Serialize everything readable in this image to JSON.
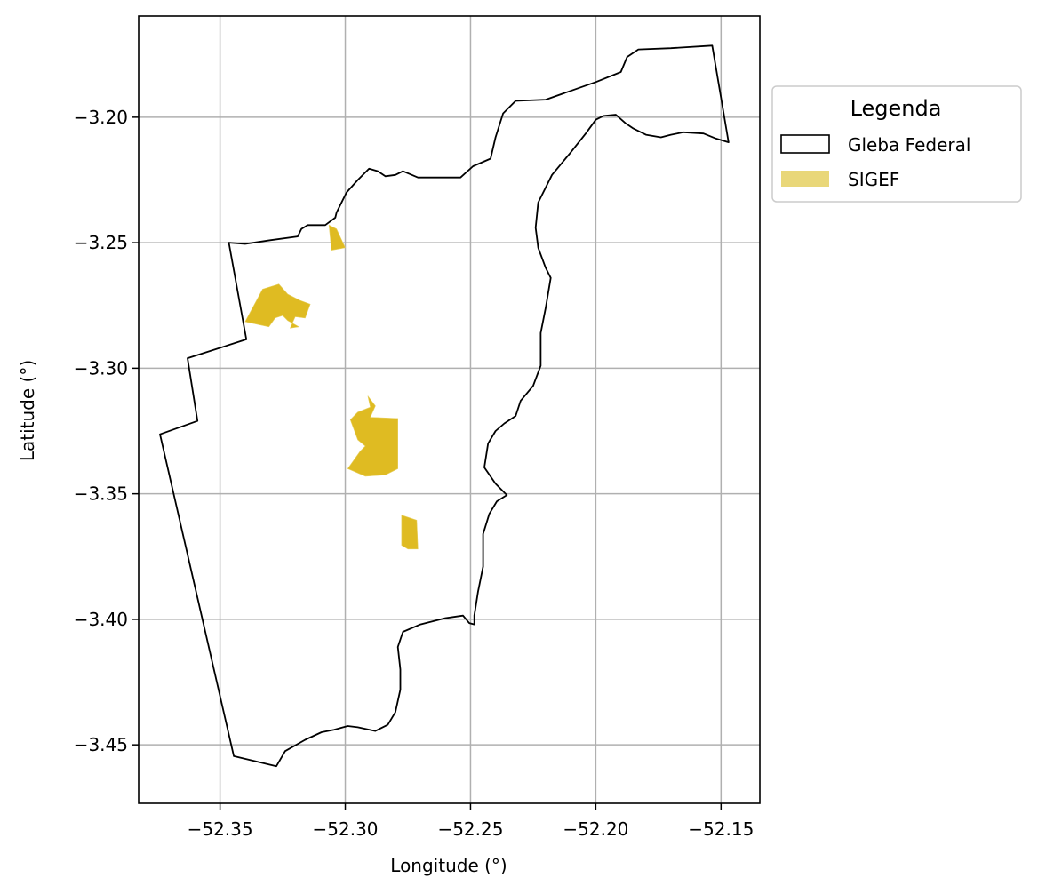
{
  "chart_data": {
    "type": "map",
    "xlabel": "Longitude (°)",
    "ylabel": "Latitude (°)",
    "xlim": [
      -52.3825,
      -52.1345
    ],
    "ylim": [
      -3.4733,
      -3.1597
    ],
    "xticks": [
      -52.35,
      -52.3,
      -52.25,
      -52.2,
      -52.15
    ],
    "yticks": [
      -3.2,
      -3.25,
      -3.3,
      -3.35,
      -3.4,
      -3.45
    ],
    "xtick_labels": [
      "−52.35",
      "−52.30",
      "−52.25",
      "−52.20",
      "−52.15"
    ],
    "ytick_labels": [
      "−3.20",
      "−3.25",
      "−3.30",
      "−3.35",
      "−3.40",
      "−3.45"
    ],
    "grid": true,
    "legend": {
      "title": "Legenda",
      "placement": "outside-upper-right",
      "entries": [
        {
          "label": "Gleba Federal",
          "style": "outline",
          "edge_color": "#000000",
          "face_color": "#ffffff"
        },
        {
          "label": "SIGEF",
          "style": "fill",
          "face_color": "#e9d779"
        }
      ]
    },
    "colors": {
      "gleba_edge": "#000000",
      "sigef_fill": "#dfbb22",
      "sigef_legend": "#e9d779",
      "grid": "#b0b0b0",
      "frame": "#000000"
    },
    "series": [
      {
        "name": "Gleba Federal",
        "geometry": "polygon",
        "coordinates": [
          [
            -52.3465,
            -3.25
          ],
          [
            -52.34,
            -3.2505
          ],
          [
            -52.33,
            -3.249
          ],
          [
            -52.319,
            -3.2475
          ],
          [
            -52.3175,
            -3.2445
          ],
          [
            -52.315,
            -3.243
          ],
          [
            -52.308,
            -3.243
          ],
          [
            -52.304,
            -3.24
          ],
          [
            -52.3035,
            -3.238
          ],
          [
            -52.2995,
            -3.23
          ],
          [
            -52.295,
            -3.225
          ],
          [
            -52.2905,
            -3.2205
          ],
          [
            -52.287,
            -3.2215
          ],
          [
            -52.284,
            -3.2235
          ],
          [
            -52.28,
            -3.223
          ],
          [
            -52.277,
            -3.2215
          ],
          [
            -52.271,
            -3.224
          ],
          [
            -52.26,
            -3.224
          ],
          [
            -52.254,
            -3.224
          ],
          [
            -52.249,
            -3.2195
          ],
          [
            -52.242,
            -3.2165
          ],
          [
            -52.24,
            -3.208
          ],
          [
            -52.237,
            -3.1985
          ],
          [
            -52.232,
            -3.1935
          ],
          [
            -52.22,
            -3.193
          ],
          [
            -52.21,
            -3.1895
          ],
          [
            -52.2,
            -3.186
          ],
          [
            -52.19,
            -3.182
          ],
          [
            -52.1875,
            -3.176
          ],
          [
            -52.183,
            -3.173
          ],
          [
            -52.17,
            -3.1725
          ],
          [
            -52.1535,
            -3.1715
          ],
          [
            -52.147,
            -3.21
          ],
          [
            -52.152,
            -3.2085
          ],
          [
            -52.157,
            -3.2065
          ],
          [
            -52.165,
            -3.206
          ],
          [
            -52.17,
            -3.207
          ],
          [
            -52.174,
            -3.208
          ],
          [
            -52.18,
            -3.207
          ],
          [
            -52.185,
            -3.2045
          ],
          [
            -52.188,
            -3.2025
          ],
          [
            -52.192,
            -3.199
          ],
          [
            -52.197,
            -3.1995
          ],
          [
            -52.2,
            -3.201
          ],
          [
            -52.204,
            -3.2065
          ],
          [
            -52.21,
            -3.214
          ],
          [
            -52.2175,
            -3.223
          ],
          [
            -52.223,
            -3.234
          ],
          [
            -52.224,
            -3.244
          ],
          [
            -52.223,
            -3.252
          ],
          [
            -52.22,
            -3.26
          ],
          [
            -52.218,
            -3.264
          ],
          [
            -52.22,
            -3.276
          ],
          [
            -52.222,
            -3.286
          ],
          [
            -52.222,
            -3.299
          ],
          [
            -52.225,
            -3.307
          ],
          [
            -52.23,
            -3.313
          ],
          [
            -52.232,
            -3.319
          ],
          [
            -52.2365,
            -3.322
          ],
          [
            -52.24,
            -3.325
          ],
          [
            -52.243,
            -3.33
          ],
          [
            -52.2445,
            -3.3395
          ],
          [
            -52.24,
            -3.346
          ],
          [
            -52.2355,
            -3.3505
          ],
          [
            -52.2395,
            -3.353
          ],
          [
            -52.2425,
            -3.358
          ],
          [
            -52.245,
            -3.366
          ],
          [
            -52.245,
            -3.379
          ],
          [
            -52.247,
            -3.389
          ],
          [
            -52.2485,
            -3.3985
          ],
          [
            -52.2485,
            -3.402
          ],
          [
            -52.2505,
            -3.4015
          ],
          [
            -52.253,
            -3.3985
          ],
          [
            -52.26,
            -3.3995
          ],
          [
            -52.27,
            -3.402
          ],
          [
            -52.277,
            -3.405
          ],
          [
            -52.279,
            -3.411
          ],
          [
            -52.278,
            -3.42
          ],
          [
            -52.278,
            -3.428
          ],
          [
            -52.28,
            -3.437
          ],
          [
            -52.283,
            -3.442
          ],
          [
            -52.288,
            -3.4445
          ],
          [
            -52.295,
            -3.443
          ],
          [
            -52.299,
            -3.4425
          ],
          [
            -52.3045,
            -3.444
          ],
          [
            -52.3095,
            -3.445
          ],
          [
            -52.316,
            -3.448
          ],
          [
            -52.324,
            -3.4525
          ],
          [
            -52.3275,
            -3.4585
          ],
          [
            -52.3445,
            -3.4545
          ],
          [
            -52.374,
            -3.3263
          ],
          [
            -52.359,
            -3.321
          ],
          [
            -52.363,
            -3.296
          ],
          [
            -52.3395,
            -3.2885
          ],
          [
            -52.3465,
            -3.25
          ]
        ]
      },
      {
        "name": "SIGEF",
        "geometry": "multipolygon",
        "parts": [
          [
            [
              -52.3065,
              -3.243
            ],
            [
              -52.3035,
              -3.2445
            ],
            [
              -52.3,
              -3.252
            ],
            [
              -52.3055,
              -3.253
            ],
            [
              -52.3065,
              -3.243
            ]
          ],
          [
            [
              -52.333,
              -3.2685
            ],
            [
              -52.3265,
              -3.2665
            ],
            [
              -52.323,
              -3.2705
            ],
            [
              -52.318,
              -3.273
            ],
            [
              -52.314,
              -3.2745
            ],
            [
              -52.316,
              -3.28
            ],
            [
              -52.32,
              -3.2795
            ],
            [
              -52.322,
              -3.284
            ],
            [
              -52.3185,
              -3.2835
            ],
            [
              -52.323,
              -3.281
            ],
            [
              -52.325,
              -3.279
            ],
            [
              -52.328,
              -3.28
            ],
            [
              -52.3305,
              -3.2835
            ],
            [
              -52.34,
              -3.2815
            ],
            [
              -52.333,
              -3.2685
            ]
          ],
          [
            [
              -52.291,
              -3.311
            ],
            [
              -52.29,
              -3.3155
            ],
            [
              -52.295,
              -3.3175
            ],
            [
              -52.298,
              -3.3205
            ],
            [
              -52.295,
              -3.3285
            ],
            [
              -52.292,
              -3.331
            ],
            [
              -52.294,
              -3.333
            ],
            [
              -52.299,
              -3.34
            ],
            [
              -52.292,
              -3.343
            ],
            [
              -52.284,
              -3.3425
            ],
            [
              -52.279,
              -3.34
            ],
            [
              -52.279,
              -3.32
            ],
            [
              -52.29,
              -3.3195
            ],
            [
              -52.288,
              -3.315
            ],
            [
              -52.291,
              -3.311
            ]
          ],
          [
            [
              -52.2775,
              -3.3585
            ],
            [
              -52.2715,
              -3.3605
            ],
            [
              -52.271,
              -3.372
            ],
            [
              -52.275,
              -3.372
            ],
            [
              -52.2775,
              -3.3705
            ],
            [
              -52.2775,
              -3.3585
            ]
          ]
        ]
      }
    ]
  }
}
